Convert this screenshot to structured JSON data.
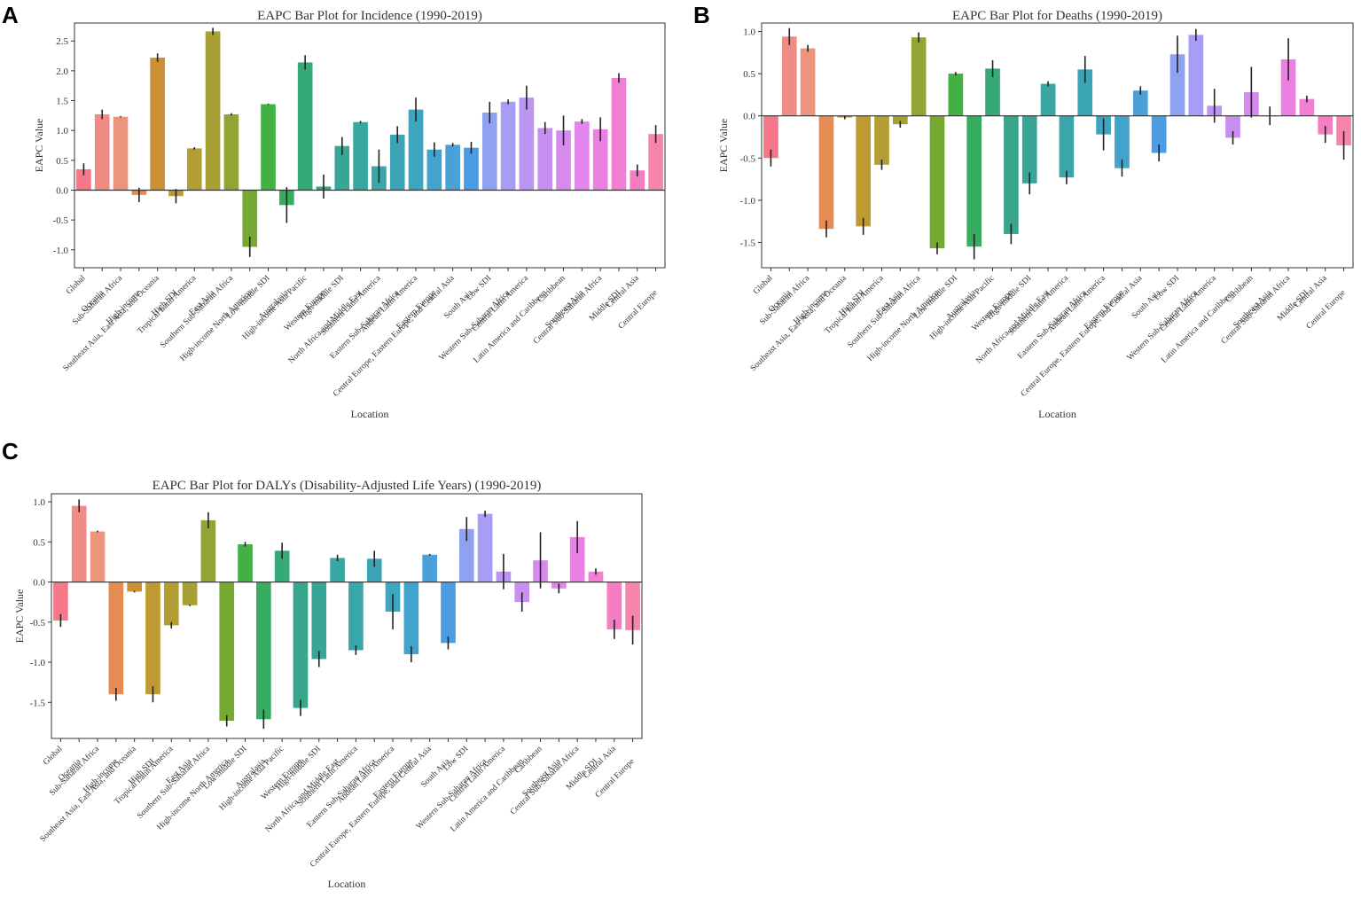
{
  "panel_labels": [
    "A",
    "B",
    "C"
  ],
  "chart_data": [
    {
      "type": "bar",
      "title": "EAPC Bar Plot for Incidence (1990-2019)",
      "xlabel": "Location",
      "ylabel": "EAPC Value",
      "ylim": [
        -1.3,
        2.8
      ],
      "yticks": [
        -1.0,
        -0.5,
        0.0,
        0.5,
        1.0,
        1.5,
        2.0,
        2.5
      ],
      "ytick_labels": [
        "-1.0",
        "-0.5",
        "0.0",
        "0.5",
        "1.0",
        "1.5",
        "2.0",
        "2.5"
      ],
      "categories": [
        "Global",
        "Oceania",
        "Sub-Saharan Africa",
        "High-income",
        "Southeast Asia, East Asia, and Oceania",
        "High SDI",
        "Tropical Latin America",
        "East Asia",
        "Southern Sub-Saharan Africa",
        "High-income North America",
        "Low-middle SDI",
        "Australasia",
        "High-income Asia Pacific",
        "Western Europe",
        "High-middle SDI",
        "North Africa and Middle East",
        "Southern Latin America",
        "Eastern Sub-Saharan Africa",
        "Andean Latin America",
        "Eastern Europe",
        "Central Europe, Eastern Europe, and Central Asia",
        "South Asia",
        "Low SDI",
        "Western Sub-Saharan Africa",
        "Central Latin America",
        "Latin America and Caribbean",
        "Caribbean",
        "Southeast Asia",
        "Central Sub-Saharan Africa",
        "Middle SDI",
        "Central Asia",
        "Central Europe"
      ],
      "values": [
        0.35,
        1.27,
        1.23,
        -0.08,
        2.22,
        -0.1,
        0.7,
        2.66,
        1.27,
        -0.95,
        1.44,
        -0.25,
        2.14,
        0.06,
        0.74,
        1.14,
        0.4,
        0.93,
        1.35,
        0.68,
        0.76,
        0.71,
        1.3,
        1.48,
        1.55,
        1.04,
        1.0,
        1.15,
        1.02,
        1.88,
        0.33,
        0.94
      ],
      "errors": [
        0.1,
        0.08,
        0.01,
        0.12,
        0.07,
        0.12,
        0.02,
        0.06,
        0.02,
        0.17,
        0.01,
        0.3,
        0.12,
        0.2,
        0.15,
        0.02,
        0.28,
        0.14,
        0.2,
        0.12,
        0.03,
        0.1,
        0.18,
        0.04,
        0.2,
        0.1,
        0.25,
        0.04,
        0.2,
        0.08,
        0.1,
        0.15
      ],
      "colors": [
        "#f6778a",
        "#f08c83",
        "#ec957d",
        "#e48c52",
        "#cc9036",
        "#bf9a33",
        "#b39e34",
        "#a6a035",
        "#90a533",
        "#75a931",
        "#43b044",
        "#36ad61",
        "#36a97a",
        "#37a68a",
        "#38a597",
        "#39a7a1",
        "#3aa6aa",
        "#3ba5b5",
        "#3da5bf",
        "#42a4cc",
        "#4aa1d8",
        "#4b9ce3",
        "#8fa2f2",
        "#a79df4",
        "#bb95f2",
        "#c98ff0",
        "#d68aee",
        "#e385ec",
        "#ea80e1",
        "#f37ed6",
        "#f57ec2",
        "#f684ab"
      ]
    },
    {
      "type": "bar",
      "title": "EAPC Bar Plot for Deaths (1990-2019)",
      "xlabel": "Location",
      "ylabel": "EAPC Value",
      "ylim": [
        -1.8,
        1.1
      ],
      "yticks": [
        -1.5,
        -1.0,
        -0.5,
        0.0,
        0.5,
        1.0
      ],
      "ytick_labels": [
        "-1.5",
        "-1.0",
        "-0.5",
        "0.0",
        "0.5",
        "1.0"
      ],
      "categories": [
        "Global",
        "Oceania",
        "Sub-Saharan Africa",
        "High-income",
        "Southeast Asia, East Asia, and Oceania",
        "High SDI",
        "Tropical Latin America",
        "East Asia",
        "Southern Sub-Saharan Africa",
        "High-income North America",
        "Low-middle SDI",
        "Australasia",
        "High-income Asia Pacific",
        "Western Europe",
        "High-middle SDI",
        "North Africa and Middle East",
        "Southern Latin America",
        "Eastern Sub-Saharan Africa",
        "Andean Latin America",
        "Eastern Europe",
        "Central Europe, Eastern Europe, and Central Asia",
        "South Asia",
        "Low SDI",
        "Western Sub-Saharan Africa",
        "Central Latin America",
        "Latin America and Caribbean",
        "Caribbean",
        "Southeast Asia",
        "Central Sub-Saharan Africa",
        "Middle SDI",
        "Central Asia",
        "Central Europe"
      ],
      "values": [
        -0.5,
        0.94,
        0.8,
        -1.34,
        -0.02,
        -1.31,
        -0.58,
        -0.1,
        0.93,
        -1.57,
        0.5,
        -1.55,
        0.56,
        -1.4,
        -0.8,
        0.38,
        -0.73,
        0.55,
        -0.22,
        -0.62,
        0.3,
        -0.44,
        0.73,
        0.96,
        0.12,
        -0.26,
        0.28,
        0.0,
        0.67,
        0.2,
        -0.22,
        -0.35
      ],
      "errors": [
        0.1,
        0.1,
        0.04,
        0.1,
        0.02,
        0.1,
        0.06,
        0.04,
        0.06,
        0.07,
        0.02,
        0.15,
        0.1,
        0.12,
        0.13,
        0.03,
        0.08,
        0.16,
        0.19,
        0.1,
        0.05,
        0.1,
        0.22,
        0.07,
        0.2,
        0.08,
        0.3,
        0.11,
        0.25,
        0.04,
        0.1,
        0.17
      ],
      "colors": [
        "#f6778a",
        "#f08c83",
        "#ec957d",
        "#e48c52",
        "#cc9036",
        "#bf9a33",
        "#b39e34",
        "#a6a035",
        "#90a533",
        "#75a931",
        "#43b044",
        "#36ad61",
        "#36a97a",
        "#37a68a",
        "#38a597",
        "#39a7a1",
        "#3aa6aa",
        "#3ba5b5",
        "#3da5bf",
        "#42a4cc",
        "#4aa1d8",
        "#4b9ce3",
        "#8fa2f2",
        "#a79df4",
        "#bb95f2",
        "#c98ff0",
        "#d68aee",
        "#e385ec",
        "#ea80e1",
        "#f37ed6",
        "#f57ec2",
        "#f684ab"
      ]
    },
    {
      "type": "bar",
      "title": "EAPC Bar Plot for DALYs (Disability-Adjusted Life Years) (1990-2019)",
      "xlabel": "Location",
      "ylabel": "EAPC Value",
      "ylim": [
        -1.95,
        1.1
      ],
      "yticks": [
        -1.5,
        -1.0,
        -0.5,
        0.0,
        0.5,
        1.0
      ],
      "ytick_labels": [
        "-1.5",
        "-1.0",
        "-0.5",
        "0.0",
        "0.5",
        "1.0"
      ],
      "categories": [
        "Global",
        "Oceania",
        "Sub-Saharan Africa",
        "High-income",
        "Southeast Asia, East Asia, and Oceania",
        "High SDI",
        "Tropical Latin America",
        "East Asia",
        "Southern Sub-Saharan Africa",
        "High-income North America",
        "Low-middle SDI",
        "Australasia",
        "High-income Asia Pacific",
        "Western Europe",
        "High-middle SDI",
        "North Africa and Middle East",
        "Southern Latin America",
        "Eastern Sub-Saharan Africa",
        "Andean Latin America",
        "Eastern Europe",
        "Central Europe, Eastern Europe, and Central Asia",
        "South Asia",
        "Low SDI",
        "Western Sub-Saharan Africa",
        "Central Latin America",
        "Latin America and Caribbean",
        "Caribbean",
        "Southeast Asia",
        "Central Sub-Saharan Africa",
        "Middle SDI",
        "Central Asia",
        "Central Europe"
      ],
      "values": [
        -0.48,
        0.95,
        0.63,
        -1.4,
        -0.12,
        -1.4,
        -0.54,
        -0.29,
        0.77,
        -1.73,
        0.47,
        -1.71,
        0.39,
        -1.57,
        -0.96,
        0.3,
        -0.85,
        0.29,
        -0.37,
        -0.9,
        0.34,
        -0.76,
        0.66,
        0.85,
        0.13,
        -0.25,
        0.27,
        -0.08,
        0.56,
        0.13,
        -0.59,
        -0.6
      ],
      "errors": [
        0.08,
        0.08,
        0.01,
        0.08,
        0.01,
        0.1,
        0.04,
        0.01,
        0.1,
        0.07,
        0.03,
        0.12,
        0.1,
        0.1,
        0.1,
        0.04,
        0.06,
        0.1,
        0.22,
        0.1,
        0.01,
        0.08,
        0.15,
        0.04,
        0.22,
        0.12,
        0.35,
        0.06,
        0.2,
        0.04,
        0.12,
        0.18
      ],
      "colors": [
        "#f6778a",
        "#f08c83",
        "#ec957d",
        "#e48c52",
        "#cc9036",
        "#bf9a33",
        "#b39e34",
        "#a6a035",
        "#90a533",
        "#75a931",
        "#43b044",
        "#36ad61",
        "#36a97a",
        "#37a68a",
        "#38a597",
        "#39a7a1",
        "#3aa6aa",
        "#3ba5b5",
        "#3da5bf",
        "#42a4cc",
        "#4aa1d8",
        "#4b9ce3",
        "#8fa2f2",
        "#a79df4",
        "#bb95f2",
        "#c98ff0",
        "#d68aee",
        "#e385ec",
        "#ea80e1",
        "#f37ed6",
        "#f57ec2",
        "#f684ab"
      ]
    }
  ]
}
